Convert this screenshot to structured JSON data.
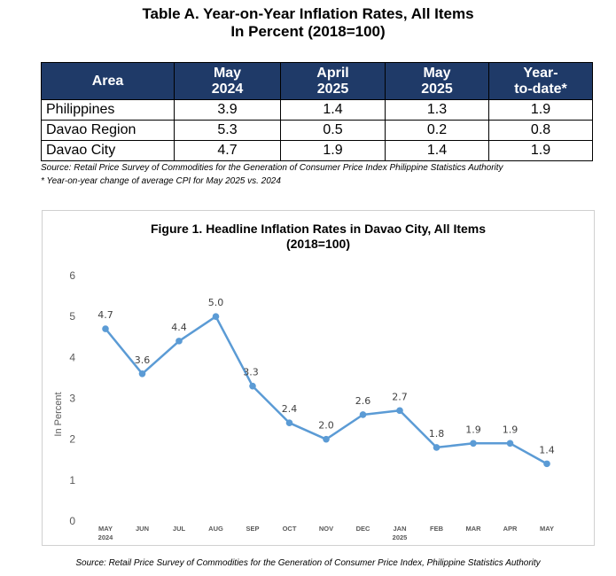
{
  "table": {
    "title_line1": "Table A. Year-on-Year Inflation Rates, All Items",
    "title_line2": "In Percent (2018=100)",
    "headers": [
      {
        "line1": "Area",
        "line2": ""
      },
      {
        "line1": "May",
        "line2": "2024"
      },
      {
        "line1": "April",
        "line2": "2025"
      },
      {
        "line1": "May",
        "line2": "2025"
      },
      {
        "line1": "Year-",
        "line2": "to-date*"
      }
    ],
    "rows": [
      {
        "area": "Philippines",
        "may2024": "3.9",
        "apr2025": "1.4",
        "may2025": "1.3",
        "ytd": "1.9"
      },
      {
        "area": "Davao Region",
        "may2024": "5.3",
        "apr2025": "0.5",
        "may2025": "0.2",
        "ytd": "0.8"
      },
      {
        "area": "Davao City",
        "may2024": "4.7",
        "apr2025": "1.9",
        "may2025": "1.4",
        "ytd": "1.9"
      }
    ],
    "source": "Source: Retail Price Survey of Commodities for the Generation of Consumer Price Index Philippine Statistics Authority",
    "footnote": "* Year-on-year change of average CPI for May 2025 vs. 2024",
    "header_color": "#1f3a68"
  },
  "figure": {
    "source": "Source: Retail Price Survey of Commodities for the Generation of Consumer Price Index, Philippine Statistics Authority"
  },
  "chart_data": {
    "type": "line",
    "title": "Figure 1. Headline Inflation Rates in Davao City, All Items",
    "subtitle": "(2018=100)",
    "xlabel": "",
    "ylabel": "In Percent",
    "categories": [
      "MAY",
      "JUN",
      "JUL",
      "AUG",
      "SEP",
      "OCT",
      "NOV",
      "DEC",
      "JAN",
      "FEB",
      "MAR",
      "APR",
      "MAY"
    ],
    "category_sublabels": [
      "2024",
      "",
      "",
      "",
      "",
      "",
      "",
      "",
      "2025",
      "",
      "",
      "",
      ""
    ],
    "series": [
      {
        "values": [
          4.7,
          3.6,
          4.4,
          5.0,
          3.3,
          2.4,
          2.0,
          2.6,
          2.7,
          1.8,
          1.9,
          1.9,
          1.4
        ],
        "labels": [
          "4.7",
          "3.6",
          "4.4",
          "5.0",
          "3.3",
          "2.4",
          "2.0",
          "2.6",
          "2.7",
          "1.8",
          "1.9",
          "1.9",
          "1.4"
        ],
        "color": "#5b9bd5"
      }
    ],
    "ylim": [
      0,
      6
    ],
    "yticks": [
      "0",
      "1",
      "2",
      "3",
      "4",
      "5",
      "6"
    ],
    "grid": false,
    "legend": "none"
  }
}
